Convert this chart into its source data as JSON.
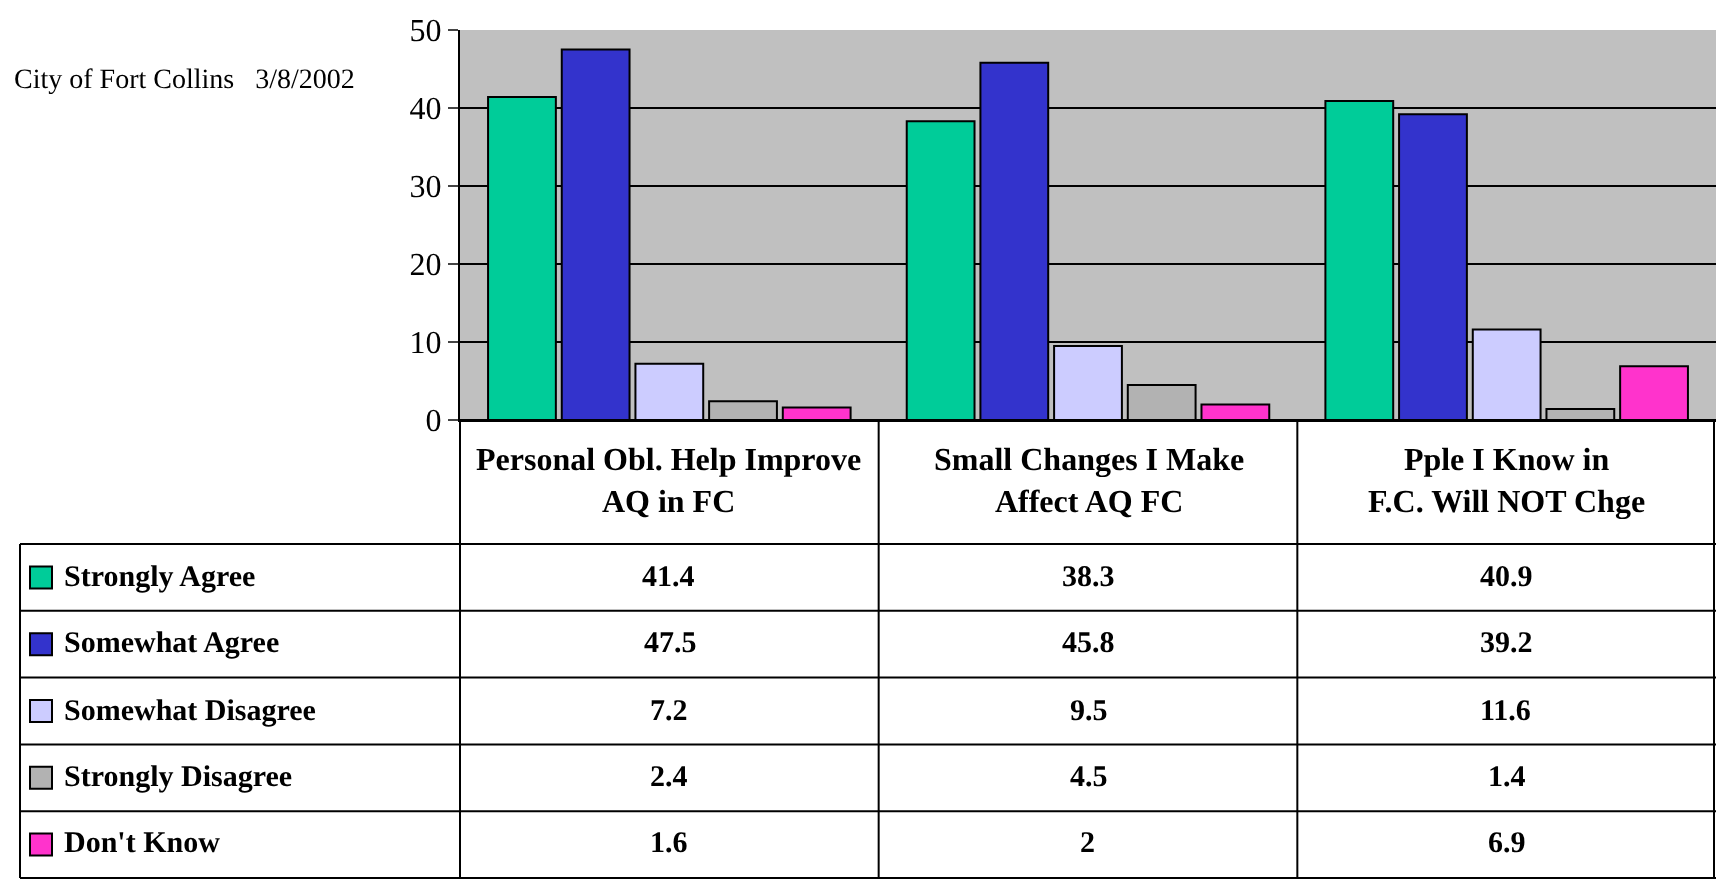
{
  "chart_data": {
    "type": "bar",
    "categories": [
      "Personal Obl. Help Improve AQ in FC",
      "Small Changes I Make Affect AQ FC",
      "Pple I Know in F.C. Will NOT Chge"
    ],
    "series": [
      {
        "name": "Strongly Agree",
        "color": "#00cc99",
        "values": [
          41.4,
          38.3,
          40.9
        ]
      },
      {
        "name": "Somewhat Agree",
        "color": "#3333cc",
        "values": [
          47.5,
          45.8,
          39.2
        ]
      },
      {
        "name": "Somewhat Disagree",
        "color": "#ccccff",
        "values": [
          7.2,
          9.5,
          11.6
        ]
      },
      {
        "name": "Strongly Disagree",
        "color": "#b2b2b2",
        "values": [
          2.4,
          4.5,
          1.4
        ]
      },
      {
        "name": "Don't Know",
        "color": "#ff33cc",
        "values": [
          1.6,
          2,
          6.9
        ]
      }
    ],
    "ylim": [
      0,
      50
    ],
    "yticks": [
      0,
      10,
      20,
      30,
      40,
      50
    ],
    "grid": "y",
    "legend": "bottom left",
    "data_labels": true,
    "annotations": [
      "City of Fort Collins   3/8/2002"
    ]
  }
}
